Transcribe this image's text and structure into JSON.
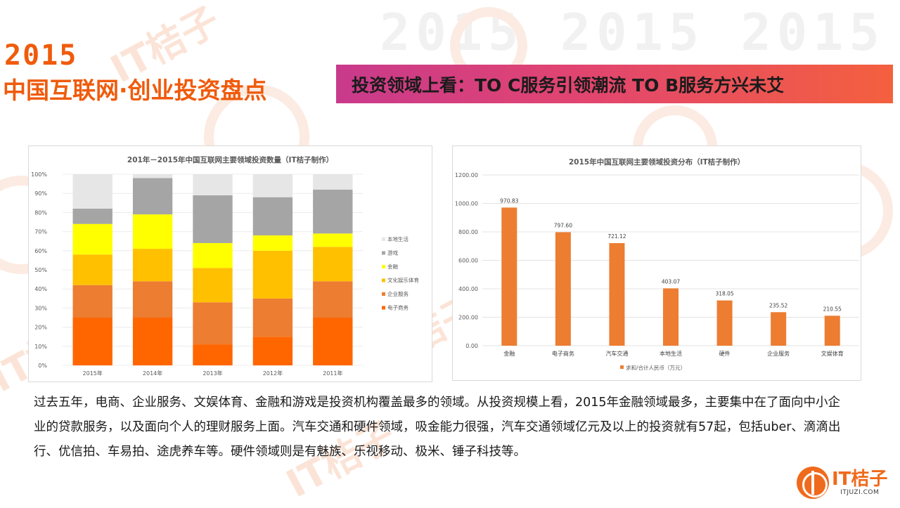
{
  "header": {
    "year": "2015",
    "title": "中国互联网·创业投资盘点",
    "banner": "投资领域上看：TO C服务引领潮流   TO B服务方兴未艾"
  },
  "watermark": {
    "years": "2015 2015 2015",
    "brand": "IT桔子"
  },
  "colors": {
    "accent": "#ef5b0c",
    "bar": "#ed7d31",
    "banner_start": "#c93a8c",
    "banner_end": "#f4603e"
  },
  "chart_data": [
    {
      "type": "bar",
      "stacked": true,
      "title": "201年－2015年中国互联网主要领域投资数量（IT桔子制作）",
      "categories": [
        "2015年",
        "2014年",
        "2013年",
        "2012年",
        "2011年"
      ],
      "y_ticks": [
        "0%",
        "10%",
        "20%",
        "30%",
        "40%",
        "50%",
        "60%",
        "70%",
        "80%",
        "90%",
        "100%"
      ],
      "ylim": [
        0,
        100
      ],
      "series": [
        {
          "name": "电子商务",
          "color": "#ff6600",
          "values": [
            25,
            25,
            11,
            15,
            25
          ]
        },
        {
          "name": "企业服务",
          "color": "#ed7d31",
          "values": [
            17,
            19,
            22,
            20,
            19
          ]
        },
        {
          "name": "文化娱乐体育",
          "color": "#ffc000",
          "values": [
            16,
            17,
            18,
            25,
            18
          ]
        },
        {
          "name": "金融",
          "color": "#ffff00",
          "values": [
            16,
            18,
            13,
            8,
            7
          ]
        },
        {
          "name": "游戏",
          "color": "#a5a5a5",
          "values": [
            8,
            19,
            25,
            20,
            23
          ]
        },
        {
          "name": "本地生活",
          "color": "#e7e6e6",
          "values": [
            18,
            2,
            11,
            12,
            8
          ]
        }
      ],
      "legend_order": [
        "本地生活",
        "游戏",
        "金融",
        "文化娱乐体育",
        "企业服务",
        "电子商务"
      ],
      "legend_position": "right"
    },
    {
      "type": "bar",
      "title": "2015年中国互联网主要领域投资分布（IT桔子制作）",
      "categories": [
        "金融",
        "电子商务",
        "汽车交通",
        "本地生活",
        "硬件",
        "企业服务",
        "文娱体育"
      ],
      "values": [
        970.83,
        797.6,
        721.12,
        403.07,
        318.05,
        235.52,
        210.55
      ],
      "value_labels": [
        "970.83",
        "797.60",
        "721.12",
        "403.07",
        "318.05",
        "235.52",
        "210.55"
      ],
      "y_ticks": [
        "0.00",
        "200.00",
        "400.00",
        "600.00",
        "800.00",
        "1000.00",
        "1200.00"
      ],
      "ylim": [
        0,
        1200
      ],
      "legend": "求和/合计人民币（万元）",
      "legend_position": "bottom",
      "color": "#ed7d31"
    }
  ],
  "body": {
    "paragraph": "过去五年，电商、企业服务、文娱体育、金融和游戏是投资机构覆盖最多的领域。从投资规模上看，2015年金融领域最多，主要集中在了面向中小企业的贷款服务，以及面向个人的理财服务上面。汽车交通和硬件领域，吸金能力很强，汽车交通领域亿元及以上的投资就有57起，包括uber、滴滴出行、优信拍、车易拍、途虎养车等。硬件领域则是有魅族、乐视移动、极米、锤子科技等。"
  },
  "logo": {
    "name": "IT桔子",
    "url": "ITJUZI.COM"
  }
}
